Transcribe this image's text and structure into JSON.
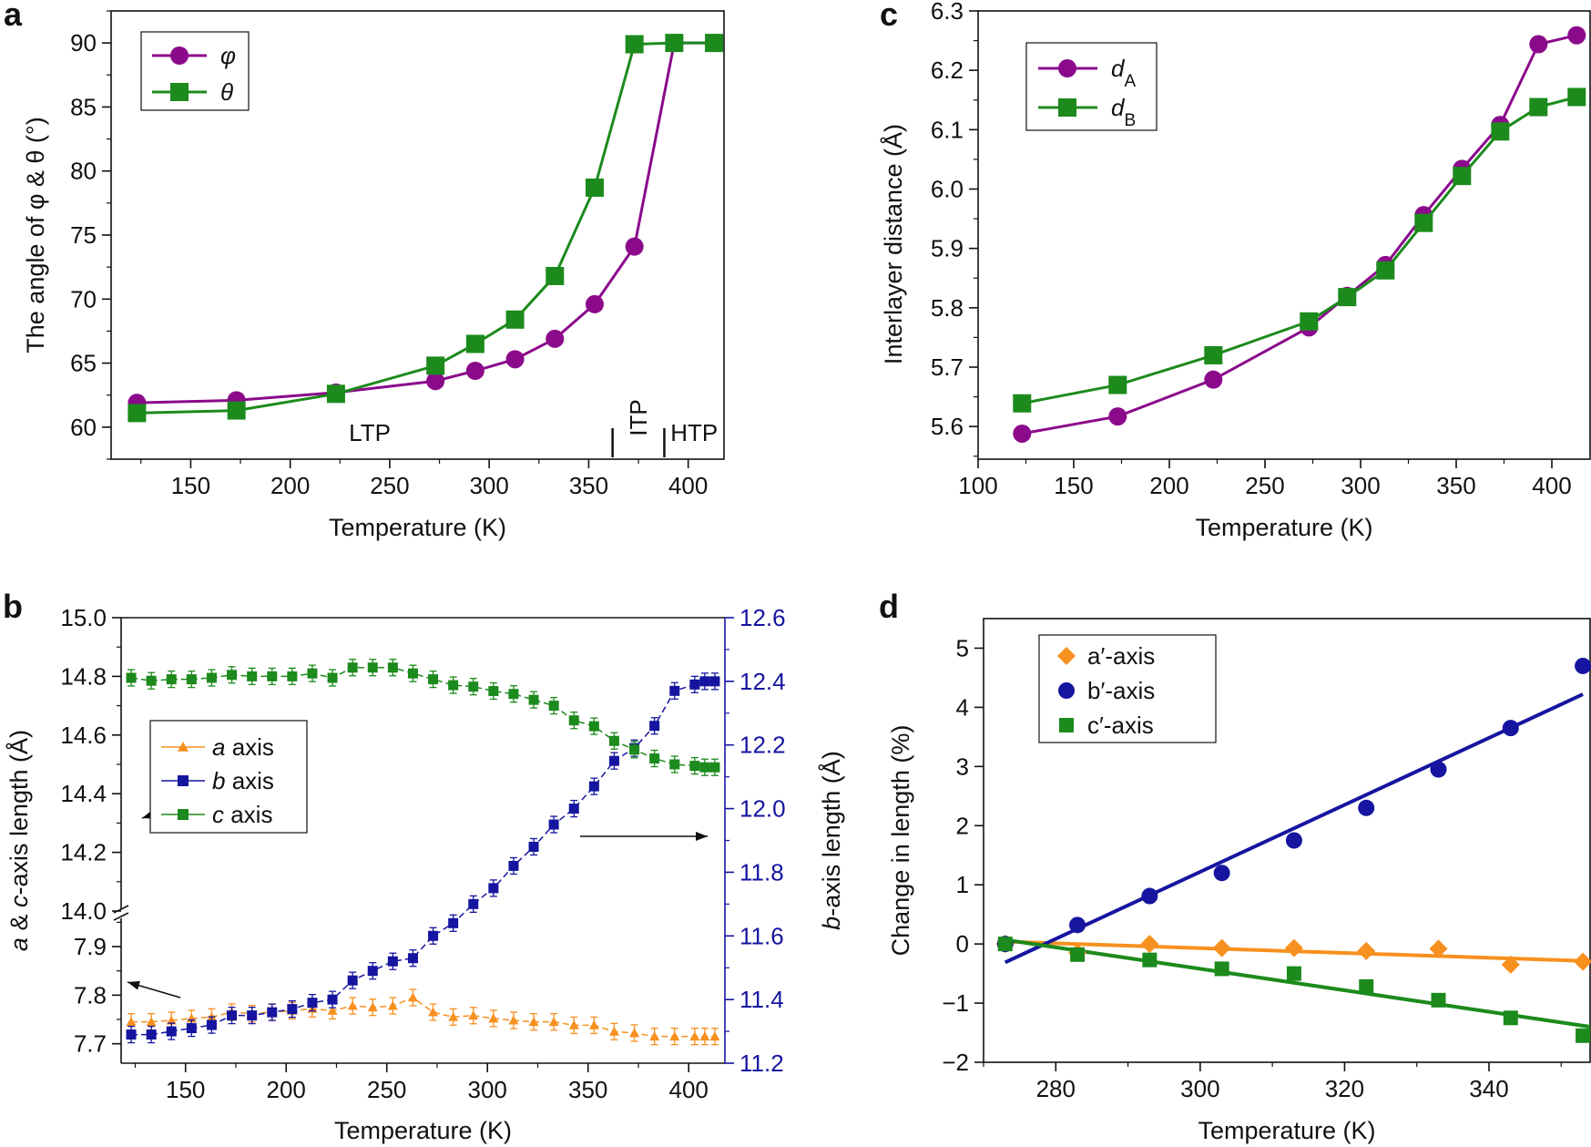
{
  "figure": {
    "panels": [
      "a",
      "b",
      "c",
      "d"
    ]
  },
  "chart_data": [
    {
      "panel": "a",
      "type": "line",
      "title": "",
      "xlabel": "Temperature (K)",
      "ylabel": "The angle of φ & θ (°)",
      "xlim": [
        110,
        418
      ],
      "ylim": [
        57.5,
        92.5
      ],
      "xticks": [
        150,
        200,
        250,
        300,
        350,
        400
      ],
      "yticks": [
        60,
        65,
        70,
        75,
        80,
        85,
        90
      ],
      "legend_position": "top-left",
      "series": [
        {
          "name": "φ",
          "color": "#8b0a8b",
          "marker": "circle",
          "x": [
            123,
            173,
            223,
            273,
            293,
            313,
            333,
            353,
            373,
            393,
            413
          ],
          "y": [
            61.9,
            62.1,
            62.7,
            63.6,
            64.4,
            65.3,
            66.9,
            69.6,
            74.1,
            90.0,
            90.0
          ]
        },
        {
          "name": "θ",
          "color": "#1c8a1c",
          "marker": "square",
          "x": [
            123,
            173,
            223,
            273,
            293,
            313,
            333,
            353,
            373,
            393,
            413
          ],
          "y": [
            61.1,
            61.3,
            62.6,
            64.8,
            66.5,
            68.4,
            71.8,
            78.7,
            89.9,
            90.0,
            90.0
          ]
        }
      ],
      "annotations": [
        {
          "text": "LTP",
          "x": 240,
          "y": 59.5
        },
        {
          "text": "ITP",
          "x": 375,
          "y": 59.3,
          "rotated": true
        },
        {
          "text": "HTP",
          "x": 403,
          "y": 59.5
        }
      ],
      "phase_boundaries": [
        362,
        388
      ]
    },
    {
      "panel": "b",
      "type": "line",
      "title": "",
      "xlabel": "Temperature (K)",
      "ylabel": "a & c-axis length (Å)",
      "ylabel_right": "b-axis length (Å)",
      "xlim": [
        118,
        418
      ],
      "xticks": [
        150,
        200,
        250,
        300,
        350,
        400
      ],
      "ylim_upper": [
        14.0,
        15.0
      ],
      "yticks_upper": [
        "15.0",
        "14.8",
        "14.6",
        "14.4",
        "14.2",
        "14.0"
      ],
      "ylim_lower": [
        7.66,
        7.96
      ],
      "yticks_lower": [
        "7.9",
        "7.8",
        "7.7"
      ],
      "ylim_right": [
        11.2,
        12.6
      ],
      "yticks_right": [
        "12.6",
        "12.4",
        "12.2",
        "12.0",
        "11.8",
        "11.6",
        "11.4",
        "11.2"
      ],
      "legend_position": "middle-left",
      "series": [
        {
          "name": "a axis",
          "italic": "a",
          "rest": " axis",
          "color": "#f7901e",
          "marker": "triangle",
          "axis": "left-lower",
          "x": [
            123,
            133,
            143,
            153,
            163,
            173,
            183,
            193,
            203,
            213,
            223,
            233,
            243,
            253,
            263,
            273,
            283,
            293,
            303,
            313,
            323,
            333,
            343,
            353,
            363,
            373,
            383,
            393,
            403,
            408,
            413
          ],
          "y": [
            7.745,
            7.745,
            7.748,
            7.752,
            7.755,
            7.765,
            7.762,
            7.765,
            7.768,
            7.772,
            7.768,
            7.778,
            7.775,
            7.778,
            7.795,
            7.765,
            7.755,
            7.758,
            7.752,
            7.748,
            7.745,
            7.745,
            7.738,
            7.738,
            7.725,
            7.722,
            7.715,
            7.715,
            7.715,
            7.715,
            7.715
          ]
        },
        {
          "name": "b axis",
          "italic": "b",
          "rest": " axis",
          "color": "#1515a0",
          "marker": "square",
          "axis": "right",
          "x": [
            123,
            133,
            143,
            153,
            163,
            173,
            183,
            193,
            203,
            213,
            223,
            233,
            243,
            253,
            263,
            273,
            283,
            293,
            303,
            313,
            323,
            333,
            343,
            353,
            363,
            373,
            383,
            393,
            403,
            408,
            413
          ],
          "y": [
            11.29,
            11.29,
            11.3,
            11.31,
            11.32,
            11.35,
            11.35,
            11.36,
            11.37,
            11.39,
            11.4,
            11.46,
            11.49,
            11.52,
            11.53,
            11.6,
            11.64,
            11.7,
            11.75,
            11.82,
            11.88,
            11.95,
            12.0,
            12.07,
            12.15,
            12.19,
            12.26,
            12.37,
            12.39,
            12.4,
            12.4
          ]
        },
        {
          "name": "c axis",
          "italic": "c",
          "rest": " axis",
          "color": "#1c8a1c",
          "marker": "square",
          "axis": "left-upper",
          "x": [
            123,
            133,
            143,
            153,
            163,
            173,
            183,
            193,
            203,
            213,
            223,
            233,
            243,
            253,
            263,
            273,
            283,
            293,
            303,
            313,
            323,
            333,
            343,
            353,
            363,
            373,
            383,
            393,
            403,
            408,
            413
          ],
          "y": [
            14.795,
            14.785,
            14.79,
            14.79,
            14.795,
            14.805,
            14.8,
            14.8,
            14.8,
            14.81,
            14.795,
            14.83,
            14.83,
            14.83,
            14.81,
            14.79,
            14.77,
            14.765,
            14.75,
            14.74,
            14.72,
            14.7,
            14.65,
            14.63,
            14.58,
            14.55,
            14.52,
            14.5,
            14.495,
            14.49,
            14.49
          ]
        }
      ],
      "arrows": [
        "c axis → left axis",
        "a axis → left axis",
        "b axis → right axis"
      ]
    },
    {
      "panel": "c",
      "type": "line",
      "title": "",
      "xlabel": "Temperature (K)",
      "ylabel": "Interlayer distance (Å)",
      "xlim": [
        100,
        420
      ],
      "ylim": [
        5.545,
        6.3
      ],
      "xticks": [
        100,
        150,
        200,
        250,
        300,
        350,
        400
      ],
      "yticks": [
        "5.6",
        "5.7",
        "5.8",
        "5.9",
        "6.0",
        "6.1",
        "6.2",
        "6.3"
      ],
      "legend_position": "top-left",
      "series": [
        {
          "name": "dA",
          "italic": "d",
          "sub": "A",
          "color": "#8b0a8b",
          "marker": "circle",
          "x": [
            123,
            173,
            223,
            273,
            293,
            313,
            333,
            353,
            373,
            393,
            413
          ],
          "y": [
            5.588,
            5.617,
            5.679,
            5.767,
            5.82,
            5.872,
            5.956,
            6.034,
            6.108,
            6.244,
            6.259
          ]
        },
        {
          "name": "dB",
          "italic": "d",
          "sub": "B",
          "color": "#1c8a1c",
          "marker": "square",
          "x": [
            123,
            173,
            223,
            273,
            293,
            313,
            333,
            353,
            373,
            393,
            413
          ],
          "y": [
            5.639,
            5.67,
            5.72,
            5.777,
            5.818,
            5.863,
            5.943,
            6.022,
            6.097,
            6.138,
            6.155
          ]
        }
      ]
    },
    {
      "panel": "d",
      "type": "scatter",
      "title": "",
      "xlabel": "Temperature (K)",
      "ylabel": "Change in length (%)",
      "xlim": [
        270,
        354
      ],
      "ylim": [
        -2.0,
        5.5
      ],
      "xticks": [
        280,
        300,
        320,
        340
      ],
      "yticks": [
        -2,
        -1,
        0,
        1,
        2,
        3,
        4,
        5
      ],
      "legend_position": "top-left",
      "series": [
        {
          "name": "a′-axis",
          "color": "#f7901e",
          "marker": "diamond",
          "x": [
            273,
            283,
            293,
            303,
            313,
            323,
            333,
            343,
            353
          ],
          "y": [
            0.0,
            -0.15,
            0.0,
            -0.07,
            -0.07,
            -0.12,
            -0.08,
            -0.35,
            -0.3
          ],
          "fit": [
            [
              273,
              0.04
            ],
            [
              354,
              -0.29
            ]
          ]
        },
        {
          "name": "b′-axis",
          "color": "#1515a0",
          "marker": "circle",
          "x": [
            273,
            283,
            293,
            303,
            313,
            323,
            333,
            343,
            353
          ],
          "y": [
            0.0,
            0.32,
            0.81,
            1.2,
            1.75,
            2.3,
            2.95,
            3.65,
            4.7
          ],
          "fit": [
            [
              273,
              -0.31
            ],
            [
              353,
              4.22
            ]
          ]
        },
        {
          "name": "c′-axis",
          "color": "#1c8a1c",
          "marker": "square",
          "x": [
            273,
            283,
            293,
            303,
            313,
            323,
            333,
            343,
            353
          ],
          "y": [
            0.0,
            -0.18,
            -0.27,
            -0.42,
            -0.5,
            -0.72,
            -0.95,
            -1.25,
            -1.55
          ],
          "fit": [
            [
              273,
              0.07
            ],
            [
              354,
              -1.4
            ]
          ]
        }
      ]
    }
  ]
}
